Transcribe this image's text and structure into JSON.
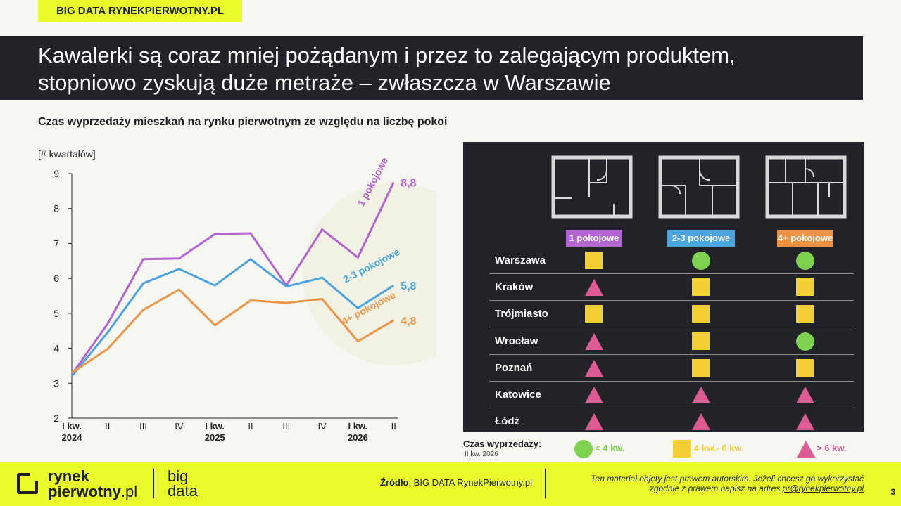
{
  "tag": "BIG DATA RYNEKPIERWOTNY.PL",
  "title_line1": "Kawalerki są coraz mniej pożądanym i przez to zalegającym produktem,",
  "title_line2": "stopniowo zyskują duże metraże – zwłaszcza w Warszawie",
  "subtitle": "Czas wyprzedaży mieszkań na rynku pierwotnym ze względu na liczbę pokoi",
  "colors": {
    "accent": "#e9fb2a",
    "dark": "#222229",
    "purple": "#b463d3",
    "blue": "#4ba3e0",
    "orange": "#ee9446",
    "square": "#f3cf34",
    "circle": "#7ed24f",
    "triangle": "#de5b94"
  },
  "chart_data": {
    "type": "line",
    "ylabel": "[# kwartałów]",
    "ylim": [
      2,
      9
    ],
    "yticks": [
      "2",
      "3",
      "4",
      "5",
      "6",
      "7",
      "8",
      "9"
    ],
    "x_quarters": [
      "I kw.",
      "II",
      "III",
      "IV",
      "I kw.",
      "II",
      "III",
      "IV",
      "I kw.",
      "II"
    ],
    "x_years": [
      "2024",
      "",
      "",
      "",
      "2025",
      "",
      "",
      "",
      "2026",
      ""
    ],
    "grid": false,
    "series": [
      {
        "name": "1 pokojowe",
        "color": "#b463d3",
        "end_label": "8,8",
        "values": [
          3.25,
          4.7,
          6.55,
          6.57,
          7.27,
          7.29,
          5.8,
          7.4,
          6.6,
          8.75
        ]
      },
      {
        "name": "2-3 pokojowe",
        "color": "#4ba3e0",
        "end_label": "5,8",
        "values": [
          3.2,
          4.45,
          5.86,
          6.27,
          5.8,
          6.55,
          5.77,
          6.02,
          5.15,
          5.8
        ]
      },
      {
        "name": "4+ pokojowe",
        "color": "#ee9446",
        "end_label": "4,8",
        "values": [
          3.3,
          3.98,
          5.1,
          5.68,
          4.66,
          5.37,
          5.3,
          5.41,
          4.2,
          4.8
        ]
      }
    ]
  },
  "table": {
    "columns": [
      {
        "label": "1 pokojowe",
        "color": "#b463d3"
      },
      {
        "label": "2-3 pokojowe",
        "color": "#4ba3e0"
      },
      {
        "label": "4+ pokojowe",
        "color": "#ee9446"
      }
    ],
    "rows": [
      {
        "city": "Warszawa",
        "marks": [
          "square",
          "circle",
          "circle"
        ]
      },
      {
        "city": "Kraków",
        "marks": [
          "triangle",
          "square",
          "square"
        ]
      },
      {
        "city": "Trójmiasto",
        "marks": [
          "square",
          "square",
          "square"
        ]
      },
      {
        "city": "Wrocław",
        "marks": [
          "triangle",
          "square",
          "circle"
        ]
      },
      {
        "city": "Poznań",
        "marks": [
          "triangle",
          "square",
          "square"
        ]
      },
      {
        "city": "Katowice",
        "marks": [
          "triangle",
          "triangle",
          "triangle"
        ]
      },
      {
        "city": "Łódź",
        "marks": [
          "triangle",
          "triangle",
          "triangle"
        ]
      }
    ]
  },
  "legend": {
    "title": "Czas wyprzedaży:",
    "period": "II kw. 2026",
    "items": [
      {
        "icon": "circle",
        "label": "< 4 kw."
      },
      {
        "icon": "square",
        "label": "4 kw.- 6 kw."
      },
      {
        "icon": "triangle",
        "label": "> 6 kw."
      }
    ]
  },
  "footer": {
    "logo_line1": "rynek",
    "logo_line2a": "pierwotny",
    "logo_line2b": ".pl",
    "bigdata_line1": "big",
    "bigdata_line2": "data",
    "source_label": "Źródło",
    "source_text": ": BIG DATA RynekPierwotny.pl",
    "copyright_line1": "Ten materiał objęty jest prawem autorskim. Jeżeli chcesz go wykorzystać",
    "copyright_line2": "zgodnie z prawem napisz na adres ",
    "email": "pr@rynekpierwotny.pl",
    "page_number": "3"
  }
}
